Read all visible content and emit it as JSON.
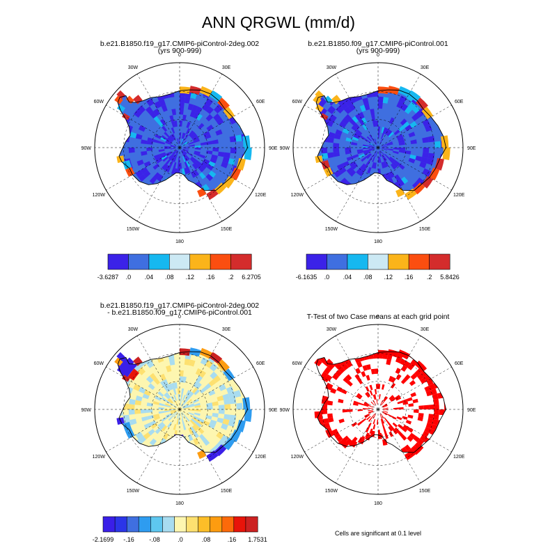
{
  "chart_data": {
    "type": "polar-map",
    "title": "ANN QRGWL (mm/d)",
    "lon_labels": [
      "0",
      "30E",
      "60E",
      "90E",
      "120E",
      "150E",
      "180",
      "150W",
      "120W",
      "90W",
      "60W",
      "30W"
    ],
    "panels": [
      {
        "id": "case1",
        "title_line1": "b.e21.B1850.f19_g17.CMIP6-piControl-2deg.002",
        "title_line2": "(yrs 900-999)",
        "field": "QRGWL",
        "dominant_value": "0 to .04",
        "colorbar": {
          "colors": [
            "#3b22e8",
            "#3f6fe0",
            "#16b8f0",
            "#cce9f4",
            "#fbb41a",
            "#fb4e10",
            "#d42c2c"
          ],
          "labels": [
            "-3.6287",
            ".0",
            ".04",
            ".08",
            ".12",
            ".16",
            ".2",
            "6.2705"
          ]
        }
      },
      {
        "id": "case2",
        "title_line1": "b.e21.B1850.f09_g17.CMIP6-piControl.001",
        "title_line2": "(yrs 900-999)",
        "field": "QRGWL",
        "dominant_value": "0 to .04",
        "colorbar": {
          "colors": [
            "#3b22e8",
            "#3f6fe0",
            "#16b8f0",
            "#cce9f4",
            "#fbb41a",
            "#fb4e10",
            "#d42c2c"
          ],
          "labels": [
            "-6.1635",
            ".0",
            ".04",
            ".08",
            ".12",
            ".16",
            ".2",
            "5.8426"
          ]
        }
      },
      {
        "id": "diff",
        "title_line1": "b.e21.B1850.f19_g17.CMIP6-piControl-2deg.002",
        "title_line2": "- b.e21.B1850.f09_g17.CMIP6-piControl.001",
        "field": "difference",
        "dominant_value": "-.04 to .04",
        "colorbar": {
          "colors": [
            "#3a1fe8",
            "#2b35e8",
            "#3f6fe0",
            "#2e9cf0",
            "#5ec7f0",
            "#a8dcf0",
            "#fdf6b0",
            "#fde070",
            "#fdbe28",
            "#fd9c10",
            "#fc6a0a",
            "#e8140a",
            "#cc2222"
          ],
          "labels": [
            "-2.1699",
            "-.16",
            "-.08",
            ".0",
            ".08",
            ".16",
            "1.7531"
          ]
        }
      },
      {
        "id": "ttest",
        "title_line1": "T-Test of two Case means at each grid point",
        "title_line2": "",
        "field": "significance",
        "significant_color": "#ff0000",
        "footnote": "Cells are significant at 0.1 level"
      }
    ]
  }
}
